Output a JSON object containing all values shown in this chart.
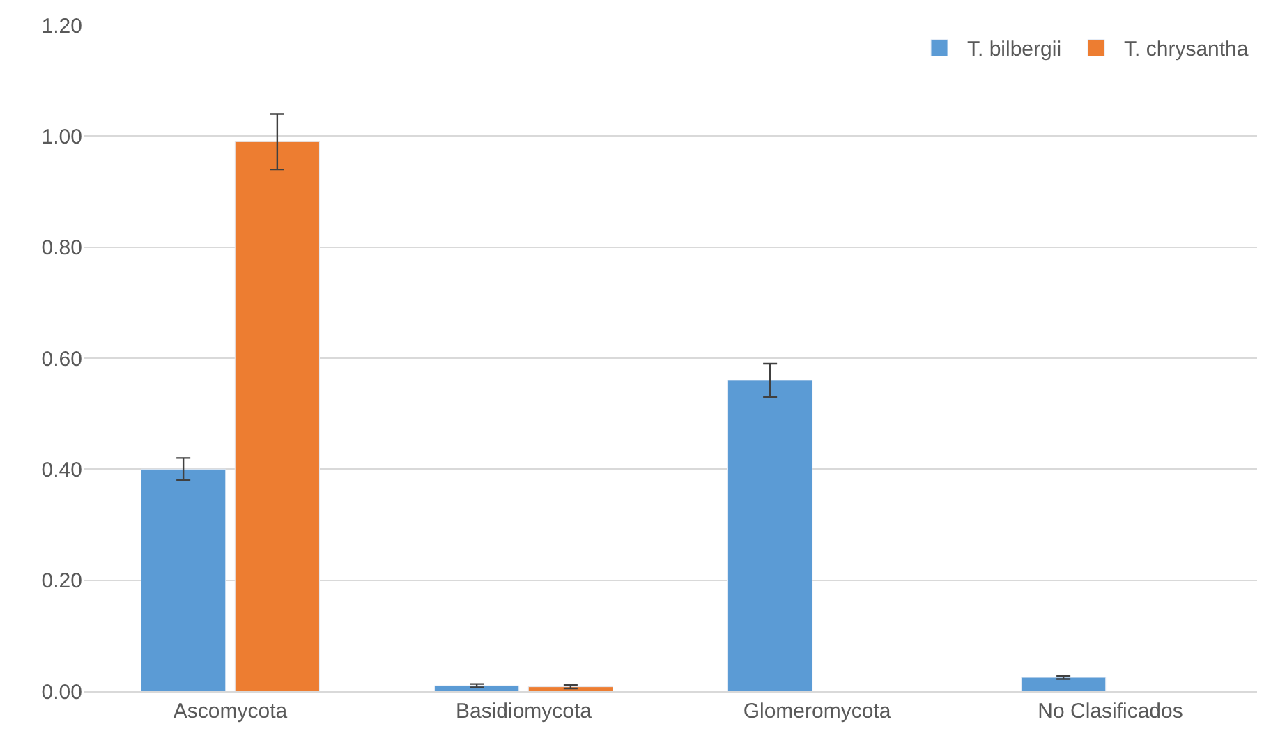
{
  "chart_data": {
    "type": "bar",
    "categories": [
      "Ascomycota",
      "Basidiomycota",
      "Glomeromycota",
      "No Clasificados"
    ],
    "series": [
      {
        "name": "T. bilbergii",
        "color": "#5b9bd5",
        "values": [
          0.4,
          0.01,
          0.56,
          0.025
        ],
        "errors": [
          0.02,
          0.003,
          0.03,
          0.003
        ]
      },
      {
        "name": "T. chrysantha",
        "color": "#ed7d31",
        "values": [
          0.99,
          0.008,
          null,
          null
        ],
        "errors": [
          0.05,
          0.003,
          null,
          null
        ]
      }
    ],
    "ylim": [
      0,
      1.2
    ],
    "yticks": [
      {
        "value": 0,
        "label": "0.00"
      },
      {
        "value": 0.2,
        "label": "0.20"
      },
      {
        "value": 0.4,
        "label": "0.40"
      },
      {
        "value": 0.6,
        "label": "0.60"
      },
      {
        "value": 0.8,
        "label": "0.80"
      },
      {
        "value": 1.0,
        "label": "1.00"
      },
      {
        "value": 1.2,
        "label": "1.20"
      }
    ],
    "grid": "y",
    "legend": "top right"
  }
}
